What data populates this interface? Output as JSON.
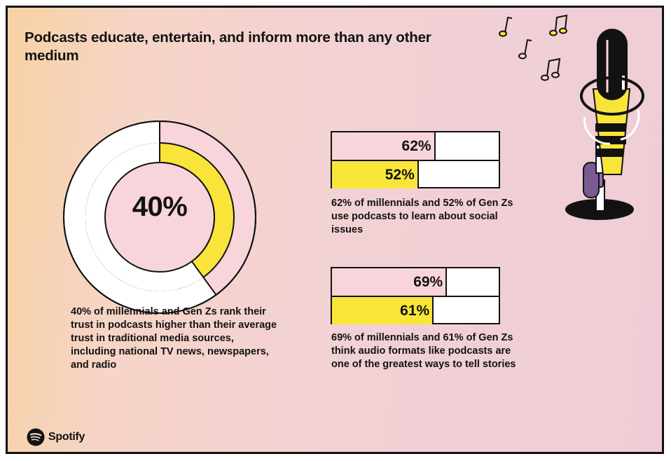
{
  "title": "Podcasts educate, entertain, and inform more than any other medium",
  "colors": {
    "pink": "#f8d5da",
    "yellow": "#f9e53a",
    "outline": "#121212",
    "white": "#ffffff"
  },
  "chart_data": [
    {
      "type": "pie",
      "style": "donut",
      "label": "40%",
      "slices": [
        {
          "value": 40
        },
        {
          "value": 60
        }
      ],
      "caption": "40% of millennials and Gen Zs rank their trust in podcasts higher than their average trust in traditional media sources, including national TV news, newspapers, and radio"
    },
    {
      "type": "bar",
      "orientation": "horizontal",
      "xlim": [
        0,
        100
      ],
      "values": [
        62,
        52
      ],
      "labels": [
        "62%",
        "52%"
      ],
      "caption": "62% of millennials and 52% of Gen Zs use podcasts to learn about social issues"
    },
    {
      "type": "bar",
      "orientation": "horizontal",
      "xlim": [
        0,
        100
      ],
      "values": [
        69,
        61
      ],
      "labels": [
        "69%",
        "61%"
      ],
      "caption": "69% of millennials and 61% of Gen Zs think audio formats like podcasts are one of the greatest ways to tell stories"
    }
  ],
  "brand": {
    "name": "Spotify",
    "icon": "spotify-logo-icon"
  },
  "illustration": {
    "name": "microphone-with-music-notes"
  }
}
